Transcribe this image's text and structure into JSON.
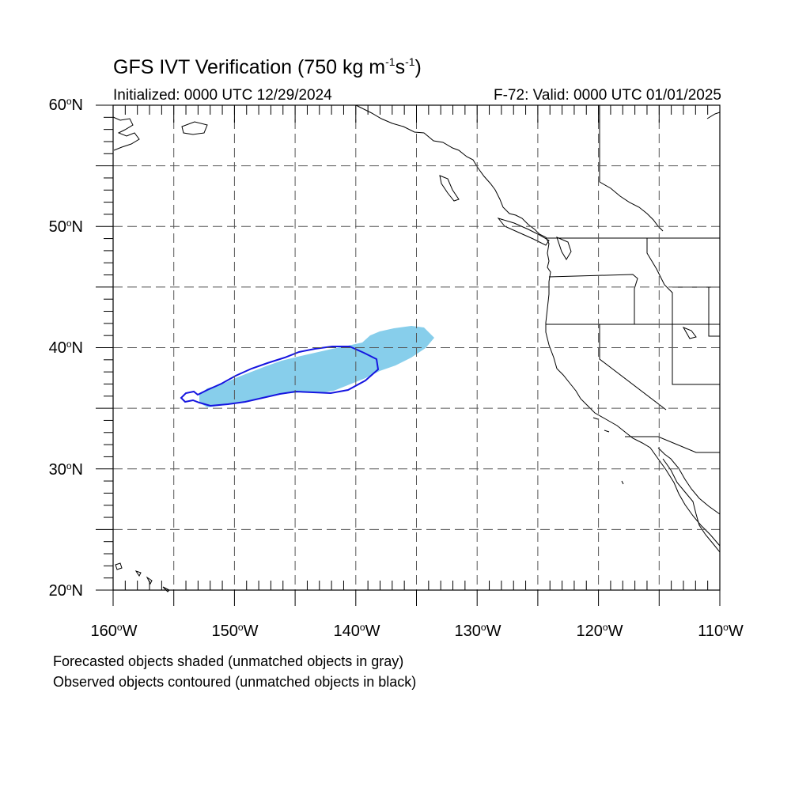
{
  "title": {
    "prefix": "GFS IVT Verification (750 kg m",
    "exp1": "-1",
    "mid": "s",
    "exp2": "-1",
    "suffix": ")"
  },
  "initialized": "Initialized: 0000 UTC 12/29/2024",
  "valid": "F-72: Valid: 0000 UTC 01/01/2025",
  "degree_mark": "o",
  "lat_labels": [
    {
      "num": "60",
      "hemi": "N"
    },
    {
      "num": "50",
      "hemi": "N"
    },
    {
      "num": "40",
      "hemi": "N"
    },
    {
      "num": "30",
      "hemi": "N"
    },
    {
      "num": "20",
      "hemi": "N"
    }
  ],
  "lon_labels": [
    {
      "num": "160",
      "hemi": "W"
    },
    {
      "num": "150",
      "hemi": "W"
    },
    {
      "num": "140",
      "hemi": "W"
    },
    {
      "num": "130",
      "hemi": "W"
    },
    {
      "num": "120",
      "hemi": "W"
    },
    {
      "num": "110",
      "hemi": "W"
    }
  ],
  "notes": {
    "forecast": "Forecasted objects shaded (unmatched objects in gray)",
    "observed": "Observed objects contoured (unmatched objects in black)"
  },
  "colors": {
    "forecast_fill": "#87ceeb",
    "observed_contour": "#1515e0",
    "coastline": "#000000",
    "grid": "#555555"
  }
}
